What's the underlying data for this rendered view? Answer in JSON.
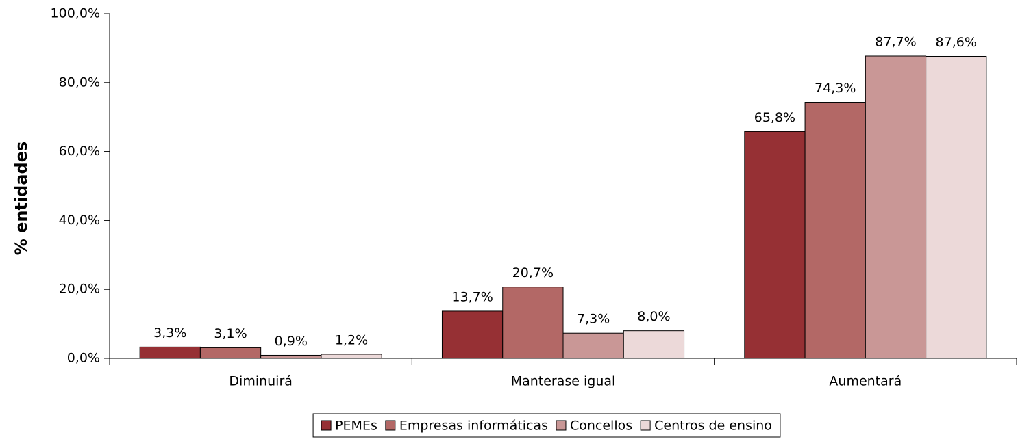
{
  "chart_data": {
    "type": "bar",
    "y_label": "% entidades",
    "categories": [
      "Diminuirá",
      "Manterase igual",
      "Aumentará"
    ],
    "series": [
      {
        "name": "PEMEs",
        "color": "#963034",
        "values": [
          3.3,
          13.7,
          65.8
        ],
        "value_labels": [
          "3,3%",
          "13,7%",
          "65,8%"
        ]
      },
      {
        "name": "Empresas informáticas",
        "color": "#b36866",
        "values": [
          3.1,
          20.7,
          74.3
        ],
        "value_labels": [
          "3,1%",
          "20,7%",
          "74,3%"
        ]
      },
      {
        "name": "Concellos",
        "color": "#c99796",
        "values": [
          0.9,
          7.3,
          87.7
        ],
        "value_labels": [
          "0,9%",
          "7,3%",
          "87,7%"
        ]
      },
      {
        "name": "Centros de ensino",
        "color": "#ecd9d9",
        "values": [
          1.2,
          8.0,
          87.6
        ],
        "value_labels": [
          "1,2%",
          "8,0%",
          "87,6%"
        ]
      }
    ],
    "ylim": [
      0,
      100
    ],
    "yticks": [
      {
        "value": 0,
        "label": "0,0%"
      },
      {
        "value": 20,
        "label": "20,0%"
      },
      {
        "value": 40,
        "label": "40,0%"
      },
      {
        "value": 60,
        "label": "60,0%"
      },
      {
        "value": 80,
        "label": "80,0%"
      },
      {
        "value": 100,
        "label": "100,0%"
      }
    ],
    "legend": "bottom"
  }
}
